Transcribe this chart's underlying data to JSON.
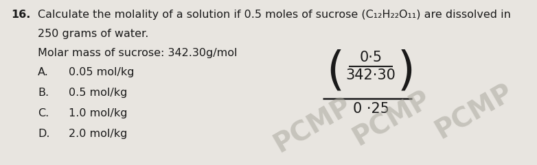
{
  "question_number": "16.",
  "question_line1": "Calculate the molality of a solution if 0.5 moles of sucrose (C₁₂H₂₂O₁₁) are dissolved in",
  "question_line2": "250 grams of water.",
  "molar_mass_line": "Molar mass of sucrose: 342.30g/mol",
  "options": [
    {
      "label": "A.",
      "text": "0.05 mol/kg"
    },
    {
      "label": "B.",
      "text": "0.5 mol/kg"
    },
    {
      "label": "C.",
      "text": "1.0 mol/kg"
    },
    {
      "label": "D.",
      "text": "2.0 mol/kg"
    }
  ],
  "fraction_numerator": "0·5",
  "fraction_denominator": "342·30",
  "fraction_result": "0 ·25",
  "watermark": "PCMP",
  "bg_color": "#e8e5e0",
  "text_color": "#1a1a1a",
  "wm_color": "#aaa89e"
}
